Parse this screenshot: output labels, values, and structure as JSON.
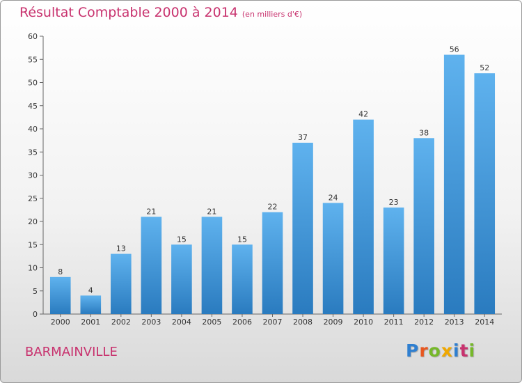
{
  "header": {
    "title": "Résultat Comptable 2000 à 2014",
    "unit": "(en milliers d'€)"
  },
  "footer": {
    "commune": "BARMAINVILLE",
    "logo": [
      "P",
      "r",
      "o",
      "x",
      "i",
      "t",
      "i"
    ],
    "logo_colors": [
      "#2f7fd0",
      "#e8571f",
      "#76b82a",
      "#f0a800",
      "#2f7fd0",
      "#c8326e",
      "#76b82a"
    ]
  },
  "chart_data": {
    "type": "bar",
    "title": "Résultat Comptable 2000 à 2014",
    "subtitle": "(en milliers d'€)",
    "xlabel": "",
    "ylabel": "",
    "categories": [
      "2000",
      "2001",
      "2002",
      "2003",
      "2004",
      "2005",
      "2006",
      "2007",
      "2008",
      "2009",
      "2010",
      "2011",
      "2012",
      "2013",
      "2014"
    ],
    "values": [
      8,
      4,
      13,
      21,
      15,
      21,
      15,
      22,
      37,
      24,
      42,
      23,
      38,
      56,
      52
    ],
    "ylim": [
      0,
      60
    ],
    "yticks": [
      0,
      5,
      10,
      15,
      20,
      25,
      30,
      35,
      40,
      45,
      50,
      55,
      60
    ],
    "grid": false,
    "bar_color": "#3a8fd6",
    "data_labels": true
  }
}
